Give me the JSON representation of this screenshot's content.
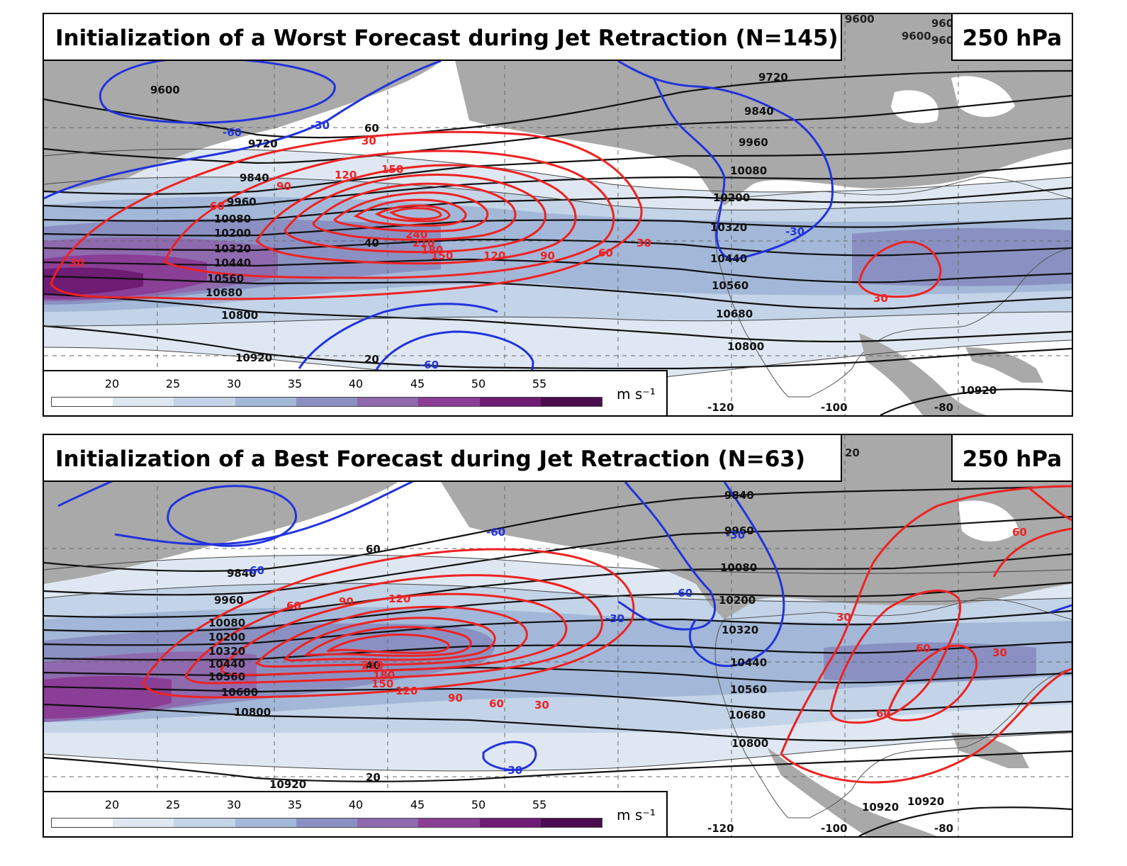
{
  "colors": {
    "land": "#a9a9a9",
    "ocean": "#ffffff",
    "height_contour": "#111111",
    "positive_anomaly": "#ee2222",
    "negative_anomaly": "#2233dd",
    "shading": [
      "#ffffff",
      "#dfe8f2",
      "#c3d4e8",
      "#a3b8d8",
      "#8a91c2",
      "#8f6aae",
      "#8a3e96",
      "#6e1c74",
      "#4a0c4e"
    ]
  },
  "legend": {
    "ticks": [
      "20",
      "25",
      "30",
      "35",
      "40",
      "45",
      "50",
      "55"
    ],
    "unit": "m s⁻¹"
  },
  "longitude_labels": [
    "-120",
    "-100",
    "-80"
  ],
  "panels": [
    {
      "title": "Initialization of a Worst Forecast during Jet Retraction  (N=145)",
      "level": "250 hPa",
      "height_labels": [
        "9600",
        "9720",
        "9720",
        "9840",
        "9840",
        "9960",
        "9960",
        "10080",
        "10080",
        "10200",
        "10200",
        "10320",
        "10320",
        "10440",
        "10440",
        "10560",
        "10560",
        "10680",
        "10680",
        "10800",
        "10800",
        "10920",
        "10920"
      ],
      "isotach_labels": [
        "20",
        "40",
        "60"
      ],
      "positive_labels": [
        "30",
        "30",
        "30",
        "30",
        "60",
        "60",
        "90",
        "90",
        "120",
        "120",
        "150",
        "150",
        "180",
        "210",
        "240"
      ],
      "negative_labels": [
        "-60",
        "-30",
        "-30",
        "-60"
      ],
      "corner_labels": [
        "9600",
        "9600",
        "960",
        "960"
      ]
    },
    {
      "title": "Initialization of a Best Forecast during Jet Retraction (N=63)",
      "level": "250 hPa",
      "height_labels": [
        "9840",
        "9840",
        "9960",
        "9960",
        "10080",
        "10080",
        "10200",
        "10200",
        "10320",
        "10320",
        "10440",
        "10440",
        "10560",
        "10560",
        "10680",
        "10680",
        "10800",
        "10800",
        "10920",
        "10920",
        "10920"
      ],
      "isotach_labels": [
        "20",
        "40",
        "60"
      ],
      "positive_labels": [
        "30",
        "30",
        "30",
        "60",
        "60",
        "60",
        "60",
        "60",
        "90",
        "90",
        "120",
        "120",
        "150",
        "180",
        "210"
      ],
      "negative_labels": [
        "-60",
        "-60",
        "-60",
        "-30",
        "-30",
        "-30"
      ],
      "corner_labels": [
        "20"
      ]
    }
  ]
}
